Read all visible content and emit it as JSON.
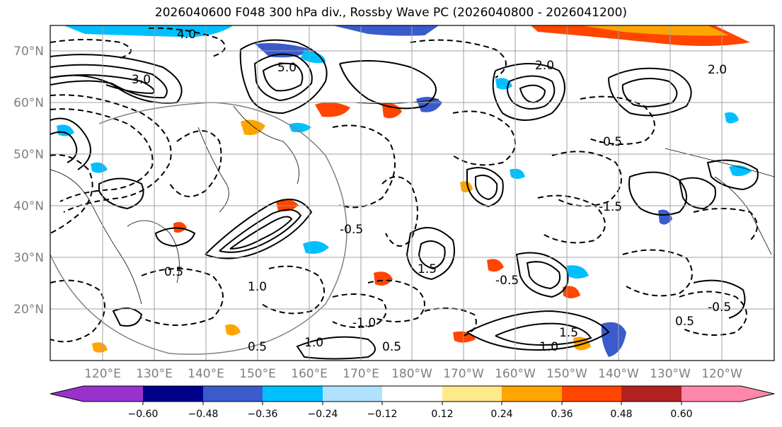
{
  "title": "2026040600 F048 300 hPa div., Rossby Wave PC (2026040800 - 2026041200)",
  "map": {
    "lat_labels": [
      "70°N",
      "60°N",
      "50°N",
      "40°N",
      "30°N",
      "20°N"
    ],
    "lon_labels": [
      "120°E",
      "130°E",
      "140°E",
      "150°E",
      "160°E",
      "170°E",
      "180°W",
      "170°W",
      "160°W",
      "150°W",
      "140°W",
      "130°W",
      "120°W"
    ],
    "contour_labels": [
      "4.0",
      "3.0",
      "5.0",
      "2.0",
      "1.0",
      "0.5",
      "-0.5",
      "1.5",
      "-1.5",
      "1.0",
      "1.5",
      "0.5",
      "-0.5",
      "-1.0",
      "2.0",
      "-0.5",
      "0.5",
      "-0.5",
      "1.0",
      "0.5"
    ],
    "colors": {
      "label_gray": "#7f7f7f",
      "contour": "#000000",
      "grid": "#a0a0a0"
    }
  },
  "colorbar": {
    "ticks": [
      "−0.60",
      "−0.48",
      "−0.36",
      "−0.24",
      "−0.12",
      "0.12",
      "0.24",
      "0.36",
      "0.48",
      "0.60"
    ],
    "colors": [
      "#9932cc",
      "#00008b",
      "#3a5bcc",
      "#00bfff",
      "#b0e2ff",
      "#ffffff",
      "#ffe98a",
      "#ffa500",
      "#ff4500",
      "#b22222",
      "#ff88aa"
    ]
  }
}
